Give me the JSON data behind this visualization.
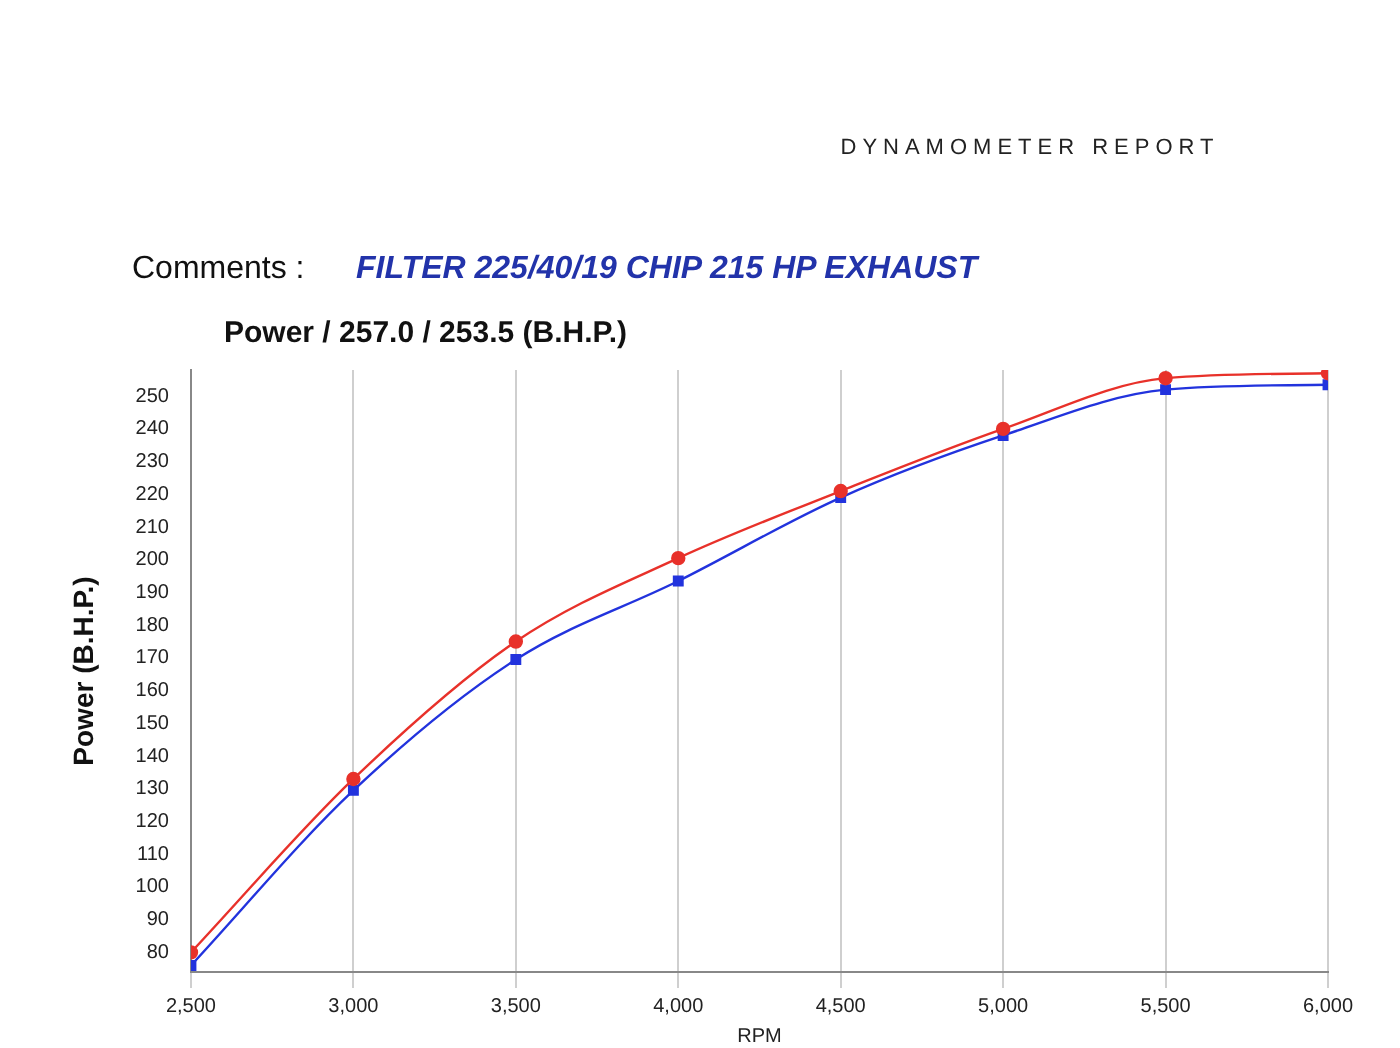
{
  "chart_data": {
    "type": "line",
    "title": "Power / 257.0 / 253.5 (B.H.P.)",
    "subtitle": "DYNAMOMETER REPORT",
    "annotations": [
      "Comments :",
      "FILTER 225/40/19 CHIP 215 HP EXHAUST"
    ],
    "xlabel": "RPM",
    "ylabel": "Power (B.H.P.)",
    "x": [
      2500,
      3000,
      3500,
      4000,
      4500,
      5000,
      5500,
      6000
    ],
    "series": [
      {
        "color": "#e8312a",
        "marker": "circle",
        "values": [
          80,
          133,
          175,
          200.5,
          221,
          240,
          255.5,
          257
        ]
      },
      {
        "color": "#2233dd",
        "marker": "square",
        "values": [
          76,
          129.5,
          169.5,
          193.5,
          219,
          238,
          252,
          253.5
        ]
      }
    ],
    "xlim": [
      2500,
      6000
    ],
    "xticks": [
      {
        "value": 2500,
        "label": "2,500"
      },
      {
        "value": 3000,
        "label": "3,000"
      },
      {
        "value": 3500,
        "label": "3,500"
      },
      {
        "value": 4000,
        "label": "4,000"
      },
      {
        "value": 4500,
        "label": "4,500"
      },
      {
        "value": 5000,
        "label": "5,000"
      },
      {
        "value": 5500,
        "label": "5,500"
      },
      {
        "value": 6000,
        "label": "6,000"
      }
    ],
    "ylim": [
      74,
      258
    ],
    "yticks": [
      80,
      90,
      100,
      110,
      120,
      130,
      140,
      150,
      160,
      170,
      180,
      190,
      200,
      210,
      220,
      230,
      240,
      250
    ],
    "grid": "x",
    "legend": false
  }
}
